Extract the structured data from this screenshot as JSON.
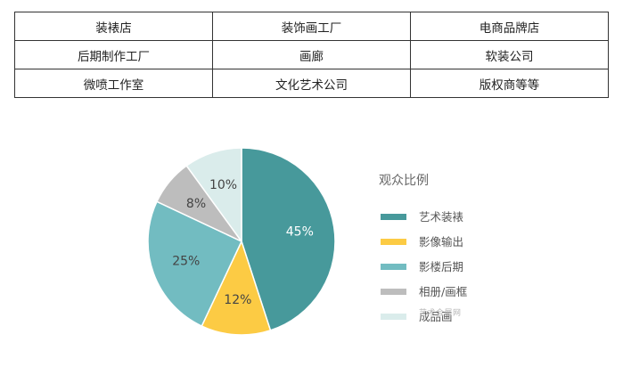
{
  "table": {
    "rows": [
      [
        "装裱店",
        "装饰画工厂",
        "电商品牌店"
      ],
      [
        "后期制作工厂",
        "画廊",
        "软装公司"
      ],
      [
        "微喷工作室",
        "文化艺术公司",
        "版权商等等"
      ]
    ]
  },
  "watermark": "艺术会展网",
  "chart_data": {
    "type": "pie",
    "title": "观众比例",
    "legend_position": "right",
    "slices": [
      {
        "label": "艺术装裱",
        "value": 45,
        "color": "#47999b",
        "label_color": "#ffffff"
      },
      {
        "label": "影像输出",
        "value": 12,
        "color": "#fccb44",
        "label_color": "#444444"
      },
      {
        "label": "影楼后期",
        "value": 25,
        "color": "#72bcc1",
        "label_color": "#444444"
      },
      {
        "label": "相册/画框",
        "value": 8,
        "color": "#bdbdbd",
        "label_color": "#444444"
      },
      {
        "label": "成品画",
        "value": 10,
        "color": "#daeceb",
        "label_color": "#444444"
      }
    ],
    "value_suffix": "%"
  }
}
